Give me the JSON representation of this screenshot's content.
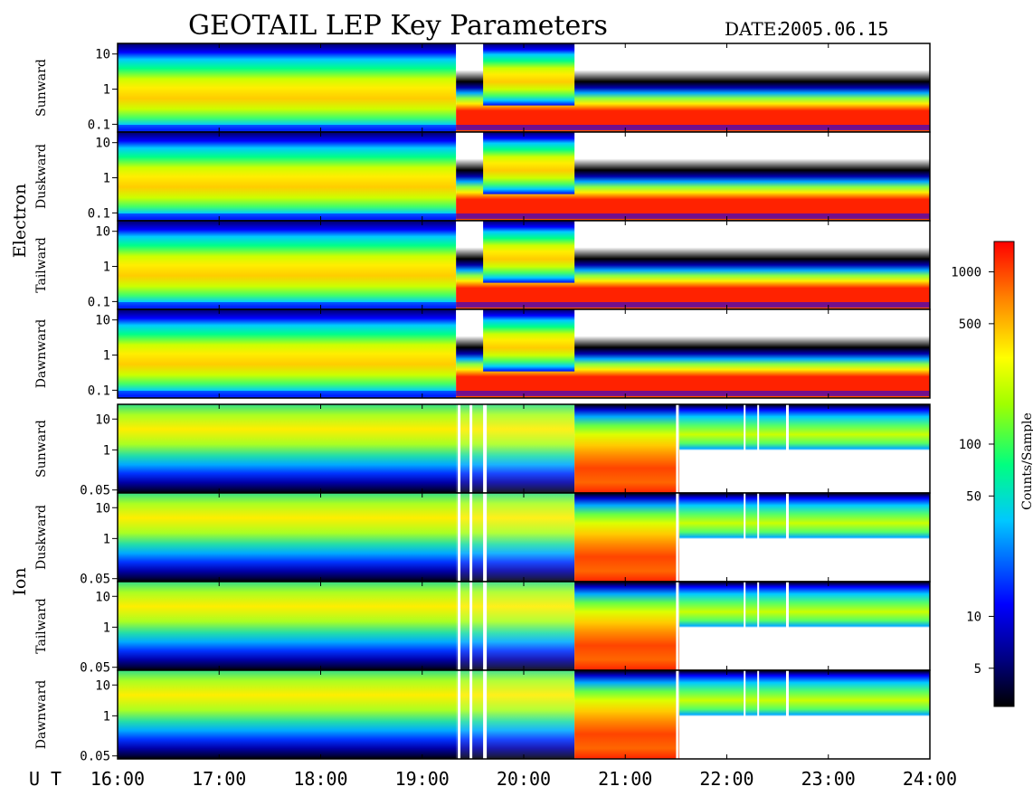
{
  "title": "GEOTAIL LEP Key Parameters",
  "date_label": "DATE:",
  "date_value": "2005.06.15",
  "colors": {
    "low": "#000000",
    "mid_low": "#0000ff",
    "mid": "#00ffff",
    "mid_high": "#ffff00",
    "high": "#ff0000"
  },
  "chart_data": {
    "type": "heatmap",
    "title": "GEOTAIL LEP Key Parameters",
    "x": [
      "16:00",
      "17:00",
      "18:00",
      "19:00",
      "20:00",
      "21:00",
      "22:00",
      "23:00",
      "24:00"
    ],
    "xlabel": "U T",
    "colorbar": {
      "label": "Counts/Sample",
      "ticks": [
        1000,
        500,
        100,
        50,
        10,
        5
      ],
      "scale": "log",
      "min": 3,
      "max": 1500
    },
    "groups": [
      {
        "name": "Electron",
        "panels": [
          "Sunward",
          "Duskward",
          "Tailward",
          "Dawnward"
        ],
        "yticks": [
          "10",
          "1",
          "0.1"
        ],
        "yscale": "log",
        "ylim": [
          0.06,
          20
        ]
      },
      {
        "name": "Ion",
        "panels": [
          "Sunward",
          "Duskward",
          "Tailward",
          "Dawnward"
        ],
        "yticks": [
          "10",
          "1",
          "0.05"
        ],
        "yscale": "log",
        "ylim": [
          0.04,
          30
        ]
      }
    ]
  }
}
